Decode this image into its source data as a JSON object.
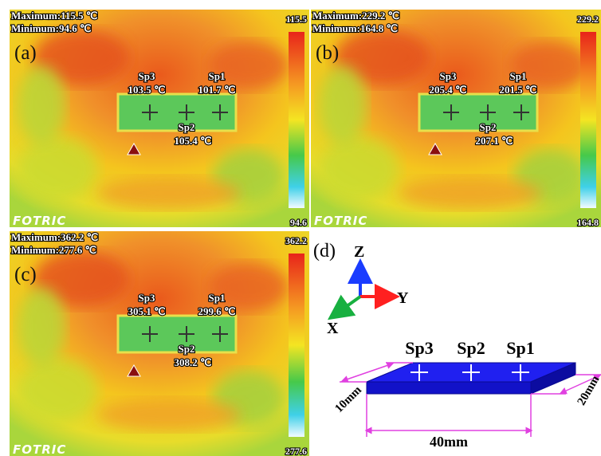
{
  "panels": [
    {
      "label": "(a)",
      "maximum": "Maximum:115.5 ℃",
      "minimum": "Minimum:94.6 ℃",
      "scale_max": "115.5",
      "scale_min": "94.6",
      "brand": "FOTRIC",
      "spots": [
        {
          "name": "Sp3",
          "temp": "103.5 ℃"
        },
        {
          "name": "Sp2",
          "temp": "105.4 ℃"
        },
        {
          "name": "Sp1",
          "temp": "101.7 ℃"
        }
      ]
    },
    {
      "label": "(b)",
      "maximum": "Maximum:229.2 ℃",
      "minimum": "Minimum:164.8 ℃",
      "scale_max": "229.2",
      "scale_min": "164.8",
      "brand": "FOTRIC",
      "spots": [
        {
          "name": "Sp3",
          "temp": "205.4 ℃"
        },
        {
          "name": "Sp2",
          "temp": "207.1 ℃"
        },
        {
          "name": "Sp1",
          "temp": "201.5 ℃"
        }
      ]
    },
    {
      "label": "(c)",
      "maximum": "Maximum:362.2 ℃",
      "minimum": "Minimum:277.6 ℃",
      "scale_max": "362.2",
      "scale_min": "277.6",
      "brand": "FOTRIC",
      "spots": [
        {
          "name": "Sp3",
          "temp": "305.1 ℃"
        },
        {
          "name": "Sp2",
          "temp": "308.2 ℃"
        },
        {
          "name": "Sp1",
          "temp": "299.6 ℃"
        }
      ]
    }
  ],
  "diagram": {
    "label": "(d)",
    "axes": {
      "z": "Z",
      "y": "Y",
      "x": "X"
    },
    "spots": [
      "Sp3",
      "Sp2",
      "Sp1"
    ],
    "width": "10mm",
    "depth": "20mm",
    "length": "40mm"
  }
}
